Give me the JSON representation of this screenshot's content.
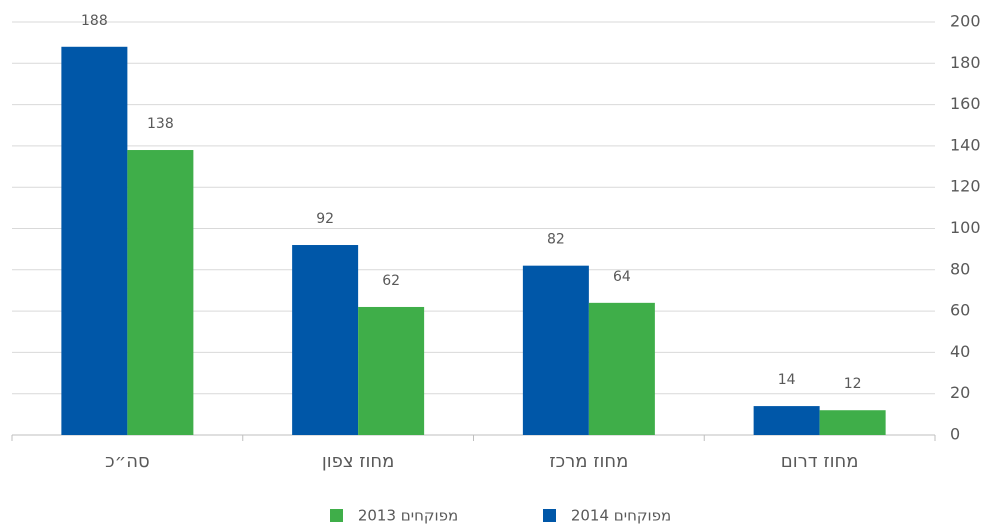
{
  "chart_data": {
    "type": "bar",
    "categories": [
      "סה״כ",
      "מחוז צפון",
      "מחוז מרכז",
      "מחוז דרום"
    ],
    "series": [
      {
        "name": "מפוקחים 2014",
        "color": "#0057a8",
        "values": [
          188,
          92,
          82,
          14
        ]
      },
      {
        "name": "מפוקחים 2013",
        "color": "#3fae49",
        "values": [
          138,
          62,
          64,
          12
        ]
      }
    ],
    "ylim": [
      0,
      200
    ],
    "yticks": [
      0,
      20,
      40,
      60,
      80,
      100,
      120,
      140,
      160,
      180,
      200
    ],
    "grid": true,
    "legend": "bottom"
  }
}
